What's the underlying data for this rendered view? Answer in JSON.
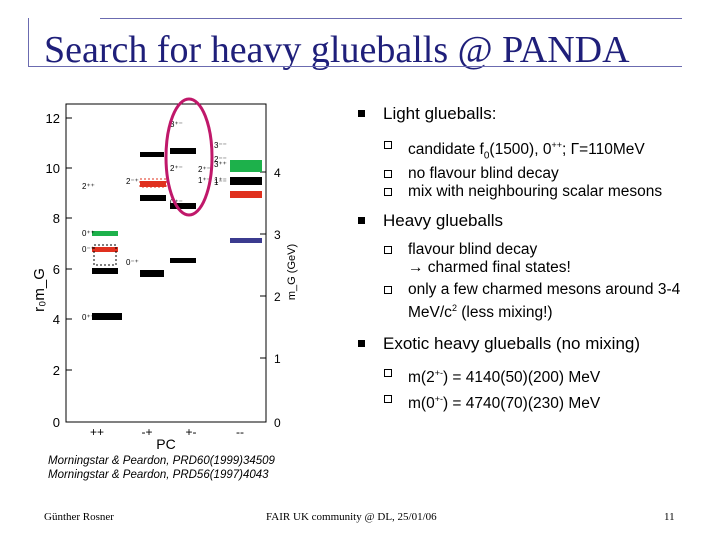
{
  "title": "Search for heavy glueballs @ PANDA",
  "bullets": [
    {
      "text": "Light glueballs:",
      "sub": [
        {
          "pre": "candidate f",
          "sub": "0",
          "post": "(1500), 0",
          "sup": "++",
          "rest": "; Γ=110MeV"
        },
        {
          "pre": "no flavour blind decay"
        },
        {
          "pre": "mix with neighbouring scalar mesons"
        }
      ]
    },
    {
      "text": "Heavy glueballs",
      "sub": [
        {
          "pre": "flavour blind decay",
          "line2": "→ charmed final states!"
        },
        {
          "pre": "only a few charmed mesons around 3-4 MeV/c",
          "sup": "2",
          "rest": " (less mixing!)"
        }
      ]
    },
    {
      "text": "Exotic heavy glueballs (no mixing)",
      "sub": [
        {
          "pre": "m(2",
          "sup": "+-",
          "rest": ") = 4140(50)(200) MeV"
        },
        {
          "pre": "m(0",
          "sup": "+-",
          "rest": ") = 4740(70)(230) MeV"
        }
      ]
    }
  ],
  "citation": [
    "Morningstar & Peardon, PRD60(1999)34509",
    "Morningstar & Peardon, PRD56(1997)4043"
  ],
  "footer": {
    "left": "Günther Rosner",
    "center": "FAIR UK community @ DL, 25/01/06",
    "page": "11"
  },
  "figure": {
    "ylabel_left": "r₀m_G",
    "ylabel_right": "m_G (GeV)",
    "xlabel": "PC",
    "left_ticks": [
      "0",
      "2",
      "4",
      "6",
      "8",
      "10",
      "12"
    ],
    "right_ticks": [
      "0",
      "1",
      "2",
      "3",
      "4"
    ],
    "x_ticks": [
      "++",
      "-+",
      "+-",
      "--"
    ],
    "state_labels": [
      "0⁺⁺",
      "2⁺⁺",
      "0⁺⁺",
      "0⁻⁺",
      "2⁻⁺",
      "0⁻⁺",
      "3⁺⁺",
      "1⁺⁻",
      "3⁺⁻",
      "2⁺⁻",
      "0⁺⁻",
      "3⁻⁻",
      "2⁻⁻",
      "1⁻⁻",
      "2⁺⁻",
      "1⁺⁻"
    ],
    "colors": {
      "black": "#000000",
      "green": "#1db14b",
      "red": "#e0301e",
      "blue": "#3b3b8f",
      "circle": "#c0186a"
    }
  }
}
